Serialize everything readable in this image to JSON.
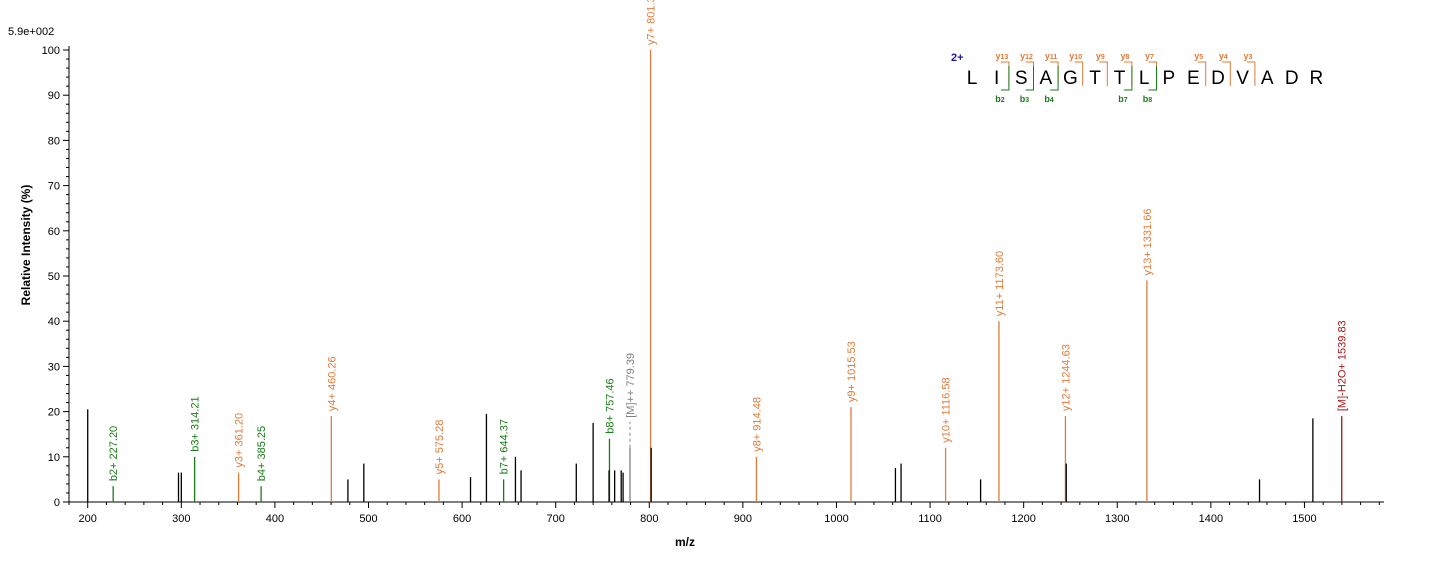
{
  "chart_data": {
    "type": "bar",
    "max_intensity_label": "5.9e+002",
    "xlabel": "m/z",
    "ylabel": "Relative   Intensity (%)",
    "xlim": [
      180,
      1585
    ],
    "ylim": [
      0,
      100
    ],
    "x_ticks": [
      200,
      300,
      400,
      500,
      600,
      700,
      800,
      900,
      1000,
      1100,
      1200,
      1300,
      1400,
      1500
    ],
    "y_ticks": [
      0,
      10,
      20,
      30,
      40,
      50,
      60,
      70,
      80,
      90,
      100
    ],
    "colors": {
      "unassigned": "#000000",
      "b": "#1a7a1a",
      "y": "#e07b39",
      "precursor": "#808080",
      "h2o": "#a01818",
      "charge": "#1a1aa0"
    },
    "peaks": [
      {
        "mz": 200.0,
        "intensity": 20.5,
        "type": "unassigned",
        "label": ""
      },
      {
        "mz": 227.2,
        "intensity": 3.5,
        "type": "b",
        "label": "b2+ 227.20"
      },
      {
        "mz": 297.0,
        "intensity": 6.5,
        "type": "unassigned",
        "label": ""
      },
      {
        "mz": 300.0,
        "intensity": 6.5,
        "type": "unassigned",
        "label": ""
      },
      {
        "mz": 314.21,
        "intensity": 10.0,
        "type": "b",
        "label": "b3+ 314.21"
      },
      {
        "mz": 361.2,
        "intensity": 6.5,
        "type": "y",
        "label": "y3+ 361.20"
      },
      {
        "mz": 385.25,
        "intensity": 3.5,
        "type": "b",
        "label": "b4+ 385.25"
      },
      {
        "mz": 460.26,
        "intensity": 19.0,
        "type": "y",
        "label": "y4+ 460.26"
      },
      {
        "mz": 478.0,
        "intensity": 5.0,
        "type": "unassigned",
        "label": ""
      },
      {
        "mz": 495.0,
        "intensity": 8.5,
        "type": "unassigned",
        "label": ""
      },
      {
        "mz": 575.28,
        "intensity": 5.0,
        "type": "y",
        "label": "y5+ 575.28"
      },
      {
        "mz": 609.0,
        "intensity": 5.5,
        "type": "unassigned",
        "label": ""
      },
      {
        "mz": 626.0,
        "intensity": 19.5,
        "type": "unassigned",
        "label": ""
      },
      {
        "mz": 644.37,
        "intensity": 5.0,
        "type": "b",
        "label": "b7+ 644.37"
      },
      {
        "mz": 657.0,
        "intensity": 10.0,
        "type": "unassigned",
        "label": ""
      },
      {
        "mz": 663.0,
        "intensity": 7.0,
        "type": "unassigned",
        "label": ""
      },
      {
        "mz": 722.0,
        "intensity": 8.5,
        "type": "unassigned",
        "label": ""
      },
      {
        "mz": 740.0,
        "intensity": 17.5,
        "type": "unassigned",
        "label": ""
      },
      {
        "mz": 757.46,
        "intensity": 14.0,
        "type": "b",
        "label": "b8+ 757.46"
      },
      {
        "mz": 757.0,
        "intensity": 7.0,
        "type": "unassigned",
        "label": ""
      },
      {
        "mz": 763.0,
        "intensity": 7.0,
        "type": "unassigned",
        "label": ""
      },
      {
        "mz": 770.0,
        "intensity": 7.0,
        "type": "unassigned",
        "label": ""
      },
      {
        "mz": 772.0,
        "intensity": 6.5,
        "type": "unassigned",
        "label": ""
      },
      {
        "mz": 779.39,
        "intensity": 12.0,
        "type": "precursor",
        "label": "[M]++ 779.39"
      },
      {
        "mz": 801.39,
        "intensity": 100.0,
        "type": "y",
        "label": "y7+ 801.39"
      },
      {
        "mz": 802.0,
        "intensity": 12.0,
        "type": "unassigned",
        "label": ""
      },
      {
        "mz": 914.48,
        "intensity": 10.0,
        "type": "y",
        "label": "y8+ 914.48"
      },
      {
        "mz": 1015.53,
        "intensity": 21.0,
        "type": "y",
        "label": "y9+ 1015.53"
      },
      {
        "mz": 1063.0,
        "intensity": 7.5,
        "type": "unassigned",
        "label": ""
      },
      {
        "mz": 1069.0,
        "intensity": 8.5,
        "type": "unassigned",
        "label": ""
      },
      {
        "mz": 1116.58,
        "intensity": 12.0,
        "type": "y",
        "label": "y10+ 1116.58"
      },
      {
        "mz": 1154.0,
        "intensity": 5.0,
        "type": "unassigned",
        "label": ""
      },
      {
        "mz": 1173.6,
        "intensity": 40.0,
        "type": "y",
        "label": "y11+ 1173.60"
      },
      {
        "mz": 1244.63,
        "intensity": 19.0,
        "type": "y",
        "label": "y12+ 1244.63"
      },
      {
        "mz": 1245.5,
        "intensity": 8.5,
        "type": "unassigned",
        "label": ""
      },
      {
        "mz": 1331.66,
        "intensity": 49.0,
        "type": "y",
        "label": "y13+ 1331.66"
      },
      {
        "mz": 1452.0,
        "intensity": 5.0,
        "type": "unassigned",
        "label": ""
      },
      {
        "mz": 1509.0,
        "intensity": 18.5,
        "type": "unassigned",
        "label": ""
      },
      {
        "mz": 1539.83,
        "intensity": 19.0,
        "type": "h2o",
        "label": "[M]-H2O+ 1539.83"
      }
    ]
  },
  "sequence": {
    "charge": "2+",
    "residues": [
      "L",
      "I",
      "S",
      "A",
      "G",
      "T",
      "T",
      "L",
      "P",
      "E",
      "D",
      "V",
      "A",
      "D",
      "R"
    ],
    "y_ions": [
      {
        "label": "y13",
        "after": 2
      },
      {
        "label": "y12",
        "after": 3
      },
      {
        "label": "y11",
        "after": 4
      },
      {
        "label": "y10",
        "after": 5
      },
      {
        "label": "y9",
        "after": 6
      },
      {
        "label": "y8",
        "after": 7
      },
      {
        "label": "y7",
        "after": 8
      },
      {
        "label": "y5",
        "after": 10
      },
      {
        "label": "y4",
        "after": 11
      },
      {
        "label": "y3",
        "after": 12
      }
    ],
    "b_ions": [
      {
        "label": "b2",
        "after": 2
      },
      {
        "label": "b3",
        "after": 3
      },
      {
        "label": "b4",
        "after": 4
      },
      {
        "label": "b7",
        "after": 7
      },
      {
        "label": "b8",
        "after": 8
      }
    ]
  }
}
